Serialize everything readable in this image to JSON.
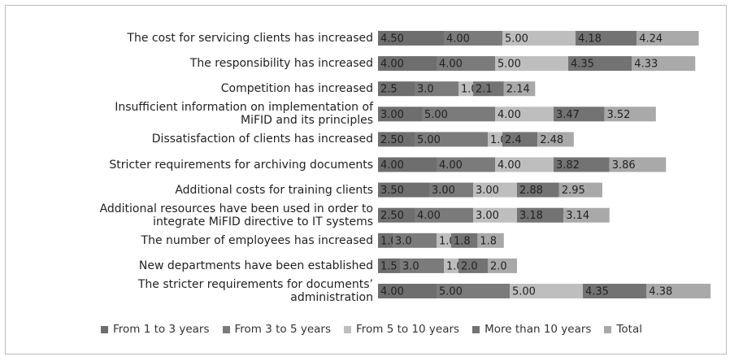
{
  "chart_data": {
    "type": "stacked_bar_horizontal",
    "categories": [
      "The cost for servicing clients has increased",
      "The responsibility has increased",
      "Competition has increased",
      "Insufficient information on implementation of MiFID and its principles",
      "Dissatisfaction of clients has increased",
      "Stricter requirements for archiving documents",
      "Additional costs for training clients",
      "Additional resources have been used in order to integrate MiFID directive to IT systems",
      "The number of employees has increased",
      "New departments have been established",
      "The stricter requirements for documents’ administration"
    ],
    "series": [
      {
        "name": "From 1 to 3 years",
        "color": "#6e6e6e",
        "values": [
          4.5,
          4,
          2.5,
          3,
          2.5,
          4,
          3.5,
          2.5,
          1,
          1.5,
          4
        ],
        "value_labels": [
          "4.50",
          "4.00",
          "2.5",
          "3.00",
          "2.50",
          "4.00",
          "3.50",
          "2.50",
          "1.0",
          "1.5",
          "4.00"
        ]
      },
      {
        "name": "From 3 to 5 years",
        "color": "#7b7b7b",
        "values": [
          4,
          4,
          3,
          5,
          5,
          4,
          3,
          4,
          3,
          3,
          5
        ],
        "value_labels": [
          "4.00",
          "4.00",
          "3.0",
          "5.00",
          "5.00",
          "4.00",
          "3.00",
          "4.00",
          "3.0",
          "3.0",
          "5.00"
        ]
      },
      {
        "name": "From 5 to 10 years",
        "color": "#bebebe",
        "values": [
          5,
          5,
          1,
          4,
          1,
          4,
          3,
          3,
          1,
          1,
          5
        ],
        "value_labels": [
          "5.00",
          "5.00",
          "1.0",
          "4.00",
          "1.0",
          "4.00",
          "3.00",
          "3.00",
          "1.0",
          "1.0",
          "5.00"
        ]
      },
      {
        "name": "More than 10 years",
        "color": "#737373",
        "values": [
          4.18,
          4.35,
          2.1,
          3.47,
          2.4,
          3.82,
          2.88,
          3.18,
          1.8,
          2,
          4.35
        ],
        "value_labels": [
          "4.18",
          "4.35",
          "2.1",
          "3.47",
          "2.4",
          "3.82",
          "2.88",
          "3.18",
          "1.8",
          "2.0",
          "4.35"
        ]
      },
      {
        "name": "Total",
        "color": "#a9a9a9",
        "values": [
          4.24,
          4.33,
          2.14,
          3.52,
          2.48,
          3.86,
          2.95,
          3.14,
          1.8,
          2,
          4.38
        ],
        "value_labels": [
          "4.24",
          "4.33",
          "2.14",
          "3.52",
          "2.48",
          "3.86",
          "2.95",
          "3.14",
          "1.8",
          "2.0",
          "4.38"
        ]
      }
    ]
  }
}
